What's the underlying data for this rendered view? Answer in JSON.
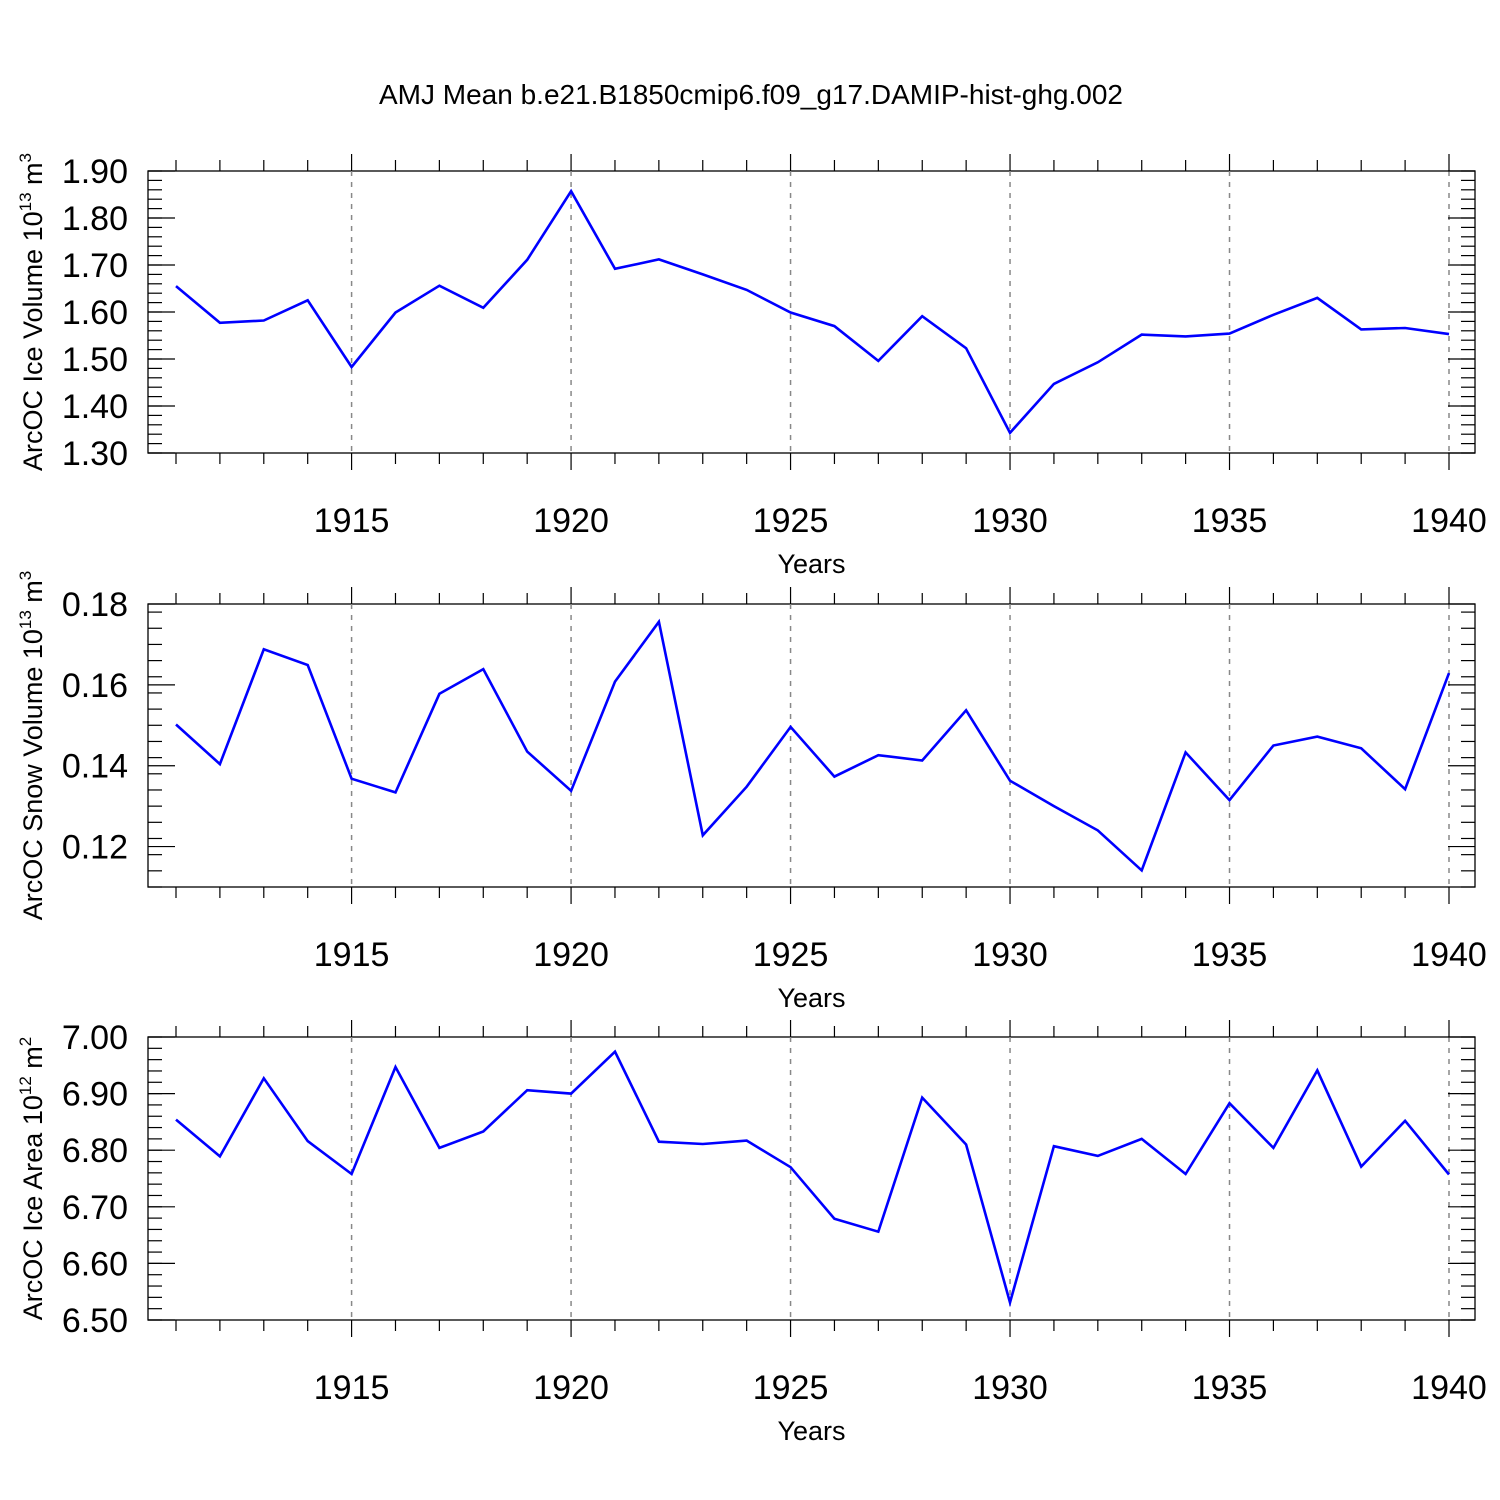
{
  "chart_data": {
    "type": "line",
    "title": "AMJ Mean b.e21.B1850cmip6.f09_g17.DAMIP-hist-ghg.002",
    "x": [
      1911,
      1912,
      1913,
      1914,
      1915,
      1916,
      1917,
      1918,
      1919,
      1920,
      1921,
      1922,
      1923,
      1924,
      1925,
      1926,
      1927,
      1928,
      1929,
      1930,
      1931,
      1932,
      1933,
      1934,
      1935,
      1936,
      1937,
      1938,
      1939,
      1940
    ],
    "xlim": [
      1911,
      1940
    ],
    "xticks": [
      1915,
      1920,
      1925,
      1930,
      1935,
      1940
    ],
    "xtick_labels": [
      "1915",
      "1920",
      "1925",
      "1930",
      "1935",
      "1940"
    ],
    "xgrid": "dashed vertical at labeled years",
    "panels": [
      {
        "name": "ice-volume",
        "ylabel": "ArcOC Ice Volume 10",
        "ylabel_exp": "13",
        "ylabel_unit": " m",
        "ylabel_unit_exp": "3",
        "ylim": [
          1.3,
          1.9
        ],
        "yticks": [
          1.3,
          1.4,
          1.5,
          1.6,
          1.7,
          1.8,
          1.9
        ],
        "ytick_labels": [
          "1.30",
          "1.40",
          "1.50",
          "1.60",
          "1.70",
          "1.80",
          "1.90"
        ],
        "xlabel": "Years",
        "values": [
          1.655,
          1.577,
          1.582,
          1.625,
          1.483,
          1.599,
          1.656,
          1.609,
          1.711,
          1.857,
          1.692,
          1.712,
          1.68,
          1.647,
          1.599,
          1.57,
          1.496,
          1.591,
          1.523,
          1.343,
          1.447,
          1.493,
          1.552,
          1.548,
          1.554,
          1.594,
          1.63,
          1.563,
          1.566,
          1.553
        ]
      },
      {
        "name": "snow-volume",
        "ylabel": "ArcOC Snow Volume 10",
        "ylabel_exp": "13",
        "ylabel_unit": " m",
        "ylabel_unit_exp": "3",
        "ylim": [
          0.11,
          0.18
        ],
        "yticks": [
          0.12,
          0.14,
          0.16,
          0.18
        ],
        "ytick_labels": [
          "0.12",
          "0.14",
          "0.16",
          "0.18"
        ],
        "xlabel": "Years",
        "values": [
          0.1502,
          0.1404,
          0.1688,
          0.1649,
          0.1368,
          0.1334,
          0.1578,
          0.1639,
          0.1435,
          0.1338,
          0.1608,
          0.1756,
          0.1228,
          0.1348,
          0.1496,
          0.1373,
          0.1426,
          0.1413,
          0.1537,
          0.1363,
          0.13,
          0.124,
          0.1141,
          0.1433,
          0.1315,
          0.145,
          0.1472,
          0.1443,
          0.1342,
          0.1629
        ]
      },
      {
        "name": "ice-area",
        "ylabel": "ArcOC Ice Area 10",
        "ylabel_exp": "12",
        "ylabel_unit": " m",
        "ylabel_unit_exp": "2",
        "ylim": [
          6.5,
          7.0
        ],
        "yticks": [
          6.5,
          6.6,
          6.7,
          6.8,
          6.9,
          7.0
        ],
        "ytick_labels": [
          "6.50",
          "6.60",
          "6.70",
          "6.80",
          "6.90",
          "7.00"
        ],
        "xlabel": "Years",
        "values": [
          6.854,
          6.789,
          6.927,
          6.816,
          6.758,
          6.947,
          6.804,
          6.833,
          6.906,
          6.9,
          6.974,
          6.815,
          6.811,
          6.817,
          6.77,
          6.679,
          6.656,
          6.893,
          6.81,
          6.531,
          6.807,
          6.79,
          6.82,
          6.758,
          6.883,
          6.804,
          6.941,
          6.771,
          6.852,
          6.757
        ]
      }
    ]
  }
}
